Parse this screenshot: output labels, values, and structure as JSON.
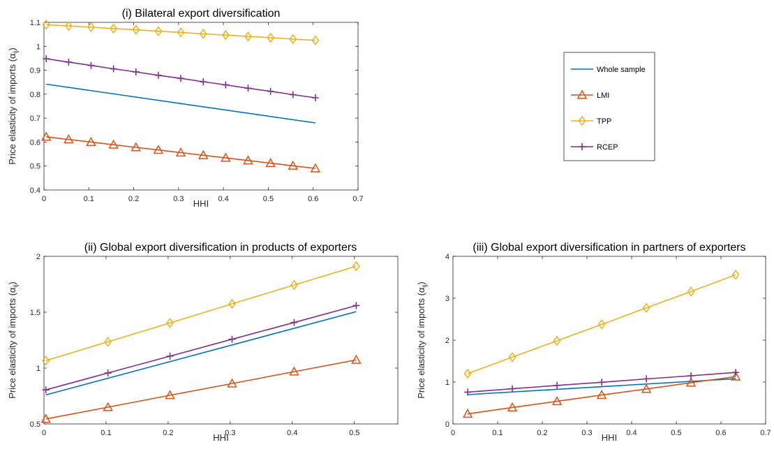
{
  "chart_data": [
    {
      "type": "line",
      "title": "(i) Bilateral export diversification",
      "xlabel": "HHI",
      "ylabel": "Price elasticity of imports (α",
      "ylabel_sub": "ij",
      "ylabel_close": ")",
      "xlim": [
        0,
        0.7
      ],
      "ylim": [
        0.4,
        1.1
      ],
      "xticks": [
        "0",
        "0.1",
        "0.2",
        "0.3",
        "0.4",
        "0.5",
        "0.6",
        "0.7"
      ],
      "yticks": [
        "0.4",
        "0.5",
        "0.6",
        "0.7",
        "0.8",
        "0.9",
        "1",
        "1.1"
      ],
      "xtick_vals": [
        0,
        0.1,
        0.2,
        0.3,
        0.4,
        0.5,
        0.6,
        0.7
      ],
      "ytick_vals": [
        0.4,
        0.5,
        0.6,
        0.7,
        0.8,
        0.9,
        1.0,
        1.1
      ],
      "grid": false,
      "series": [
        {
          "name": "Whole sample",
          "color": "#0072BD",
          "marker": "none",
          "x": [
            0.005,
            0.605
          ],
          "y": [
            0.842,
            0.68
          ]
        },
        {
          "name": "LMI",
          "color": "#D95319",
          "marker": "triangle",
          "x": [
            0.005,
            0.055,
            0.105,
            0.155,
            0.205,
            0.255,
            0.305,
            0.355,
            0.405,
            0.455,
            0.505,
            0.555,
            0.605
          ],
          "y": [
            0.622,
            0.611,
            0.6,
            0.589,
            0.578,
            0.567,
            0.556,
            0.545,
            0.534,
            0.523,
            0.512,
            0.501,
            0.49
          ]
        },
        {
          "name": "TPP",
          "color": "#EDB120",
          "marker": "diamond",
          "x": [
            0.005,
            0.055,
            0.105,
            0.155,
            0.205,
            0.255,
            0.305,
            0.355,
            0.405,
            0.455,
            0.505,
            0.555,
            0.605
          ],
          "y": [
            1.09,
            1.085,
            1.08,
            1.074,
            1.069,
            1.063,
            1.058,
            1.052,
            1.047,
            1.041,
            1.036,
            1.03,
            1.025
          ]
        },
        {
          "name": "RCEP",
          "color": "#7E2F8E",
          "marker": "plus",
          "x": [
            0.005,
            0.055,
            0.105,
            0.155,
            0.205,
            0.255,
            0.305,
            0.355,
            0.405,
            0.455,
            0.505,
            0.555,
            0.605
          ],
          "y": [
            0.948,
            0.934,
            0.92,
            0.906,
            0.893,
            0.879,
            0.866,
            0.852,
            0.839,
            0.825,
            0.812,
            0.798,
            0.785
          ]
        }
      ]
    },
    {
      "type": "line",
      "title": "(ii) Global export diversification in products of exporters",
      "xlabel": "HHI",
      "ylabel": "Price elasticity of imports (α",
      "ylabel_sub": "ij",
      "ylabel_close": ")",
      "xlim": [
        0,
        0.57
      ],
      "ylim": [
        0.5,
        2.0
      ],
      "xticks": [
        "0",
        "0.1",
        "0.2",
        "0.3",
        "0.4",
        "0.5"
      ],
      "yticks": [
        "0.5",
        "1",
        "1.5",
        "2"
      ],
      "xtick_vals": [
        0,
        0.1,
        0.2,
        0.3,
        0.4,
        0.5
      ],
      "ytick_vals": [
        0.5,
        1.0,
        1.5,
        2.0
      ],
      "grid": false,
      "series": [
        {
          "name": "Whole sample",
          "color": "#0072BD",
          "marker": "none",
          "x": [
            0.003,
            0.503
          ],
          "y": [
            0.76,
            1.505
          ]
        },
        {
          "name": "LMI",
          "color": "#D95319",
          "marker": "triangle",
          "x": [
            0.003,
            0.103,
            0.203,
            0.303,
            0.403,
            0.503
          ],
          "y": [
            0.545,
            0.65,
            0.757,
            0.862,
            0.968,
            1.073
          ]
        },
        {
          "name": "TPP",
          "color": "#EDB120",
          "marker": "diamond",
          "x": [
            0.003,
            0.103,
            0.203,
            0.303,
            0.403,
            0.503
          ],
          "y": [
            1.067,
            1.235,
            1.404,
            1.575,
            1.744,
            1.912
          ]
        },
        {
          "name": "RCEP",
          "color": "#7E2F8E",
          "marker": "plus",
          "x": [
            0.003,
            0.103,
            0.203,
            0.303,
            0.403,
            0.503
          ],
          "y": [
            0.805,
            0.956,
            1.107,
            1.258,
            1.408,
            1.56
          ]
        }
      ]
    },
    {
      "type": "line",
      "title": "(iii) Global export diversification in partners of exporters",
      "xlabel": "HHI",
      "ylabel": "Price elasticity of imports (α",
      "ylabel_sub": "ij",
      "ylabel_close": ")",
      "xlim": [
        0,
        0.7
      ],
      "ylim": [
        0,
        4
      ],
      "xticks": [
        "0",
        "0.1",
        "0.2",
        "0.3",
        "0.4",
        "0.5",
        "0.6",
        "0.7"
      ],
      "yticks": [
        "0",
        "1",
        "2",
        "3",
        "4"
      ],
      "xtick_vals": [
        0,
        0.1,
        0.2,
        0.3,
        0.4,
        0.5,
        0.6,
        0.7
      ],
      "ytick_vals": [
        0,
        1,
        2,
        3,
        4
      ],
      "grid": false,
      "series": [
        {
          "name": "Whole sample",
          "color": "#0072BD",
          "marker": "none",
          "x": [
            0.033,
            0.633
          ],
          "y": [
            0.7,
            1.08
          ]
        },
        {
          "name": "LMI",
          "color": "#D95319",
          "marker": "triangle",
          "x": [
            0.033,
            0.133,
            0.233,
            0.333,
            0.433,
            0.533,
            0.633
          ],
          "y": [
            0.24,
            0.393,
            0.54,
            0.69,
            0.835,
            0.985,
            1.13
          ]
        },
        {
          "name": "TPP",
          "color": "#EDB120",
          "marker": "diamond",
          "x": [
            0.033,
            0.133,
            0.233,
            0.333,
            0.433,
            0.533,
            0.633
          ],
          "y": [
            1.2,
            1.595,
            1.985,
            2.375,
            2.77,
            3.16,
            3.56
          ]
        },
        {
          "name": "RCEP",
          "color": "#7E2F8E",
          "marker": "plus",
          "x": [
            0.033,
            0.133,
            0.233,
            0.333,
            0.433,
            0.533,
            0.633
          ],
          "y": [
            0.76,
            0.84,
            0.92,
            0.995,
            1.075,
            1.15,
            1.23
          ]
        }
      ]
    }
  ],
  "legend": {
    "placement": "right of panel (i)",
    "entries": [
      {
        "label": "Whole sample",
        "color": "#0072BD",
        "marker": "none"
      },
      {
        "label": "LMI",
        "color": "#D95319",
        "marker": "triangle"
      },
      {
        "label": "TPP",
        "color": "#EDB120",
        "marker": "diamond"
      },
      {
        "label": "RCEP",
        "color": "#7E2F8E",
        "marker": "plus"
      }
    ]
  }
}
